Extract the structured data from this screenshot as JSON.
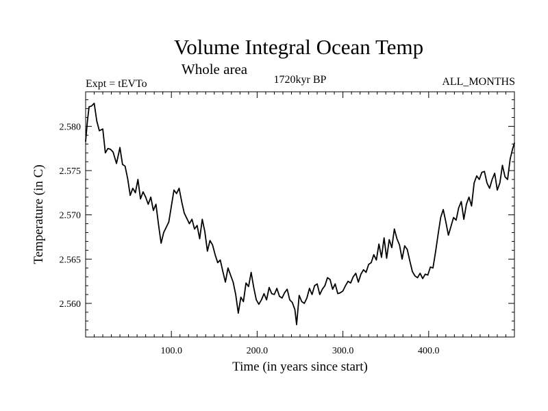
{
  "chart_data": {
    "type": "line",
    "title": "Volume Integral Ocean Temp",
    "subtitle": "Whole area",
    "left_label": "Expt = tEVTo",
    "center_label": "1720kyr BP",
    "right_label": "ALL_MONTHS",
    "xlabel": "Time (in years since start)",
    "ylabel": "Temperature (in C)",
    "xlim": [
      0,
      500
    ],
    "ylim": [
      2.5562,
      2.5839
    ],
    "grid": false,
    "x_ticks": [
      100,
      200,
      300,
      400
    ],
    "x_tick_labels": [
      "100.0",
      "200.0",
      "300.0",
      "400.0"
    ],
    "y_ticks": [
      2.56,
      2.565,
      2.57,
      2.575,
      2.58
    ],
    "y_tick_labels": [
      "2.560",
      "2.565",
      "2.570",
      "2.575",
      "2.580"
    ],
    "line_color": "#000000",
    "series": [
      {
        "name": "tEVTo",
        "x": [
          0,
          2,
          4,
          7,
          10,
          13,
          16,
          20,
          23,
          26,
          29,
          32,
          36,
          40,
          43,
          46,
          49,
          52,
          55,
          58,
          61,
          64,
          67,
          70,
          73,
          76,
          79,
          82,
          85,
          88,
          91,
          94,
          97,
          100,
          103,
          106,
          109,
          112,
          115,
          118,
          121,
          124,
          127,
          130,
          133,
          136,
          139,
          142,
          145,
          148,
          151,
          154,
          157,
          160,
          163,
          166,
          169,
          172,
          175,
          178,
          181,
          184,
          187,
          190,
          193,
          196,
          199,
          202,
          205,
          208,
          211,
          214,
          217,
          220,
          223,
          226,
          229,
          232,
          235,
          238,
          241,
          244,
          246,
          249,
          252,
          255,
          258,
          261,
          264,
          267,
          270,
          273,
          276,
          279,
          282,
          285,
          288,
          291,
          294,
          297,
          300,
          303,
          306,
          309,
          312,
          315,
          318,
          321,
          324,
          327,
          330,
          333,
          336,
          339,
          342,
          345,
          348,
          351,
          354,
          357,
          360,
          363,
          366,
          369,
          372,
          375,
          378,
          381,
          384,
          387,
          390,
          393,
          396,
          399,
          402,
          405,
          408,
          411,
          414,
          417,
          420,
          423,
          426,
          429,
          432,
          435,
          438,
          441,
          444,
          447,
          450,
          453,
          456,
          459,
          462,
          465,
          468,
          471,
          474,
          477,
          480,
          483,
          486,
          489,
          492,
          495,
          498,
          500
        ],
        "values": [
          2.5783,
          2.5805,
          2.5822,
          2.5823,
          2.5826,
          2.5806,
          2.5795,
          2.5797,
          2.577,
          2.5775,
          2.5774,
          2.5771,
          2.5758,
          2.5776,
          2.5757,
          2.5755,
          2.5741,
          2.5722,
          2.573,
          2.5725,
          2.574,
          2.5718,
          2.5726,
          2.572,
          2.5712,
          2.572,
          2.5705,
          2.5712,
          2.5689,
          2.5668,
          2.568,
          2.5686,
          2.5692,
          2.571,
          2.5728,
          2.5724,
          2.573,
          2.5715,
          2.5702,
          2.5696,
          2.569,
          2.5695,
          2.5684,
          2.5688,
          2.5673,
          2.5695,
          2.5681,
          2.5659,
          2.5671,
          2.5666,
          2.5655,
          2.5646,
          2.5649,
          2.5636,
          2.5624,
          2.564,
          2.5632,
          2.5624,
          2.561,
          2.5589,
          2.5607,
          2.5602,
          2.5623,
          2.5619,
          2.5635,
          2.5618,
          2.5604,
          2.5599,
          2.5604,
          2.5611,
          2.5604,
          2.5618,
          2.5611,
          2.561,
          2.5617,
          2.5608,
          2.5606,
          2.5612,
          2.5616,
          2.5604,
          2.5601,
          2.5593,
          2.5576,
          2.5609,
          2.5602,
          2.56,
          2.5606,
          2.5617,
          2.561,
          2.562,
          2.5622,
          2.561,
          2.5616,
          2.562,
          2.5629,
          2.5627,
          2.5616,
          2.5622,
          2.5611,
          2.5612,
          2.5614,
          2.562,
          2.5625,
          2.5623,
          2.563,
          2.5634,
          2.5624,
          2.5633,
          2.5638,
          2.5635,
          2.5644,
          2.5646,
          2.5655,
          2.5649,
          2.5667,
          2.5652,
          2.5674,
          2.5651,
          2.5672,
          2.5663,
          2.5684,
          2.5673,
          2.5666,
          2.565,
          2.5665,
          2.5661,
          2.5648,
          2.5636,
          2.5631,
          2.5629,
          2.5634,
          2.5628,
          2.5633,
          2.5632,
          2.5641,
          2.564,
          2.5658,
          2.5678,
          2.5697,
          2.5706,
          2.5692,
          2.5677,
          2.5687,
          2.5697,
          2.5694,
          2.5708,
          2.5715,
          2.5695,
          2.5712,
          2.572,
          2.571,
          2.5736,
          2.5744,
          2.574,
          2.5748,
          2.5749,
          2.5736,
          2.573,
          2.574,
          2.5747,
          2.5728,
          2.5736,
          2.5756,
          2.5743,
          2.574,
          2.5763,
          2.5775,
          2.5781
        ]
      }
    ]
  }
}
